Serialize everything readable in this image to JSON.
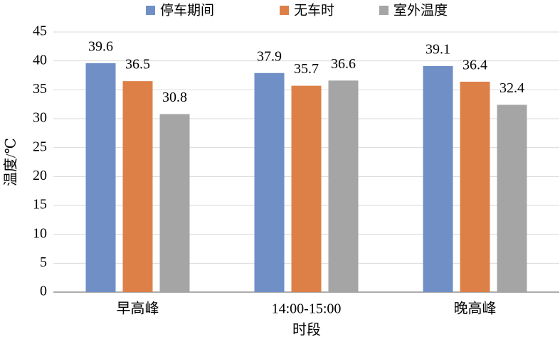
{
  "chart_data": {
    "type": "bar",
    "x_label": "时段",
    "y_label": "温度/℃",
    "categories": [
      "早高峰",
      "14:00-15:00",
      "晚高峰"
    ],
    "series": [
      {
        "name": "停车期间",
        "color": "#6f8fc6",
        "values": [
          39.6,
          37.9,
          39.1
        ]
      },
      {
        "name": "无车时",
        "color": "#dd8047",
        "values": [
          36.5,
          35.7,
          36.4
        ]
      },
      {
        "name": "室外温度",
        "color": "#a5a5a5",
        "values": [
          30.8,
          36.6,
          32.4
        ]
      }
    ],
    "ylim": [
      0,
      45
    ],
    "yticks": [
      0,
      5,
      10,
      15,
      20,
      25,
      30,
      35,
      40,
      45
    ],
    "grid": true,
    "legend": "top"
  }
}
